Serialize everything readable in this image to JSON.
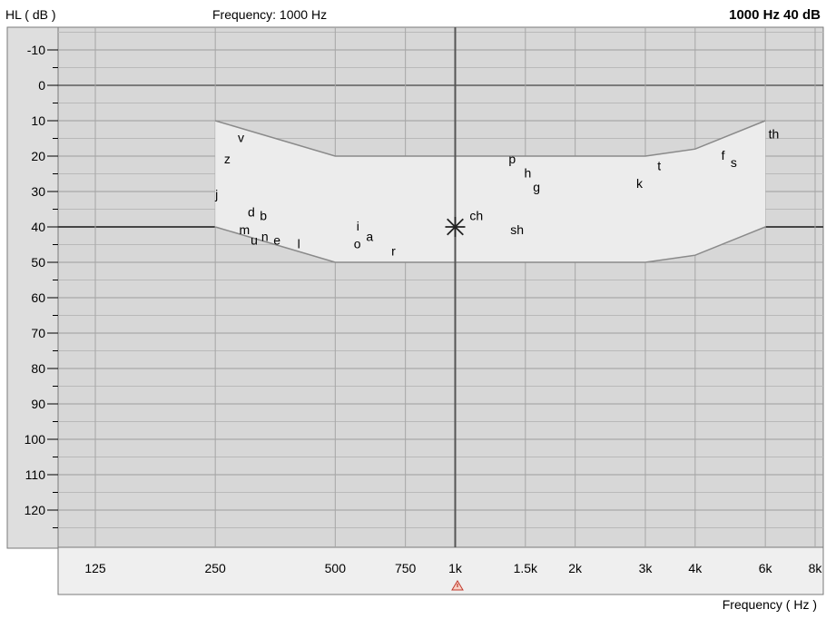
{
  "header": {
    "hl_label": "HL ( dB )",
    "frequency_text": "Frequency: 1000 Hz",
    "current_value": "1000 Hz 40 dB"
  },
  "footer": {
    "x_axis_label": "Frequency ( Hz )"
  },
  "colors": {
    "plot_bg": "#d7d7d7",
    "banana_fill": "#ececec",
    "gridline": "#a6a6a6",
    "outline": "#8a8a8a",
    "cursor": "#555555"
  },
  "chart_data": {
    "type": "scatter",
    "x_scale": "log",
    "y_inverted": true,
    "xlim": [
      100,
      8000
    ],
    "ylim": [
      -10,
      120
    ],
    "x_ticks": [
      {
        "value": 125,
        "label": "125"
      },
      {
        "value": 250,
        "label": "250"
      },
      {
        "value": 500,
        "label": "500"
      },
      {
        "value": 750,
        "label": "750"
      },
      {
        "value": 1000,
        "label": "1k"
      },
      {
        "value": 1500,
        "label": "1.5k"
      },
      {
        "value": 2000,
        "label": "2k"
      },
      {
        "value": 3000,
        "label": "3k"
      },
      {
        "value": 4000,
        "label": "4k"
      },
      {
        "value": 6000,
        "label": "6k"
      },
      {
        "value": 8000,
        "label": "8k"
      }
    ],
    "y_ticks": [
      -10,
      0,
      10,
      20,
      30,
      40,
      50,
      60,
      70,
      80,
      90,
      100,
      110,
      120
    ],
    "speech_banana_upper": [
      {
        "x": 250,
        "y": 10
      },
      {
        "x": 500,
        "y": 20
      },
      {
        "x": 3000,
        "y": 20
      },
      {
        "x": 4000,
        "y": 18
      },
      {
        "x": 6000,
        "y": 10
      }
    ],
    "speech_banana_lower": [
      {
        "x": 250,
        "y": 40
      },
      {
        "x": 500,
        "y": 50
      },
      {
        "x": 3000,
        "y": 50
      },
      {
        "x": 4000,
        "y": 48
      },
      {
        "x": 6000,
        "y": 40
      }
    ],
    "phonemes": [
      {
        "label": "v",
        "x": 290,
        "y": 15
      },
      {
        "label": "z",
        "x": 268,
        "y": 21
      },
      {
        "label": "j",
        "x": 252,
        "y": 31
      },
      {
        "label": "d",
        "x": 308,
        "y": 36
      },
      {
        "label": "b",
        "x": 330,
        "y": 37
      },
      {
        "label": "m",
        "x": 296,
        "y": 41
      },
      {
        "label": "u",
        "x": 313,
        "y": 44
      },
      {
        "label": "n",
        "x": 333,
        "y": 43
      },
      {
        "label": "e",
        "x": 357,
        "y": 44
      },
      {
        "label": "l",
        "x": 405,
        "y": 45
      },
      {
        "label": "i",
        "x": 570,
        "y": 40
      },
      {
        "label": "a",
        "x": 610,
        "y": 43
      },
      {
        "label": "o",
        "x": 568,
        "y": 45
      },
      {
        "label": "r",
        "x": 700,
        "y": 47
      },
      {
        "label": "ch",
        "x": 1130,
        "y": 37
      },
      {
        "label": "sh",
        "x": 1430,
        "y": 41
      },
      {
        "label": "p",
        "x": 1390,
        "y": 21
      },
      {
        "label": "h",
        "x": 1520,
        "y": 25
      },
      {
        "label": "g",
        "x": 1600,
        "y": 29
      },
      {
        "label": "k",
        "x": 2900,
        "y": 28
      },
      {
        "label": "t",
        "x": 3250,
        "y": 23
      },
      {
        "label": "f",
        "x": 4700,
        "y": 20
      },
      {
        "label": "s",
        "x": 5000,
        "y": 22
      },
      {
        "label": "th",
        "x": 6300,
        "y": 14
      }
    ],
    "cursor": {
      "x": 1000,
      "y": 40
    }
  }
}
